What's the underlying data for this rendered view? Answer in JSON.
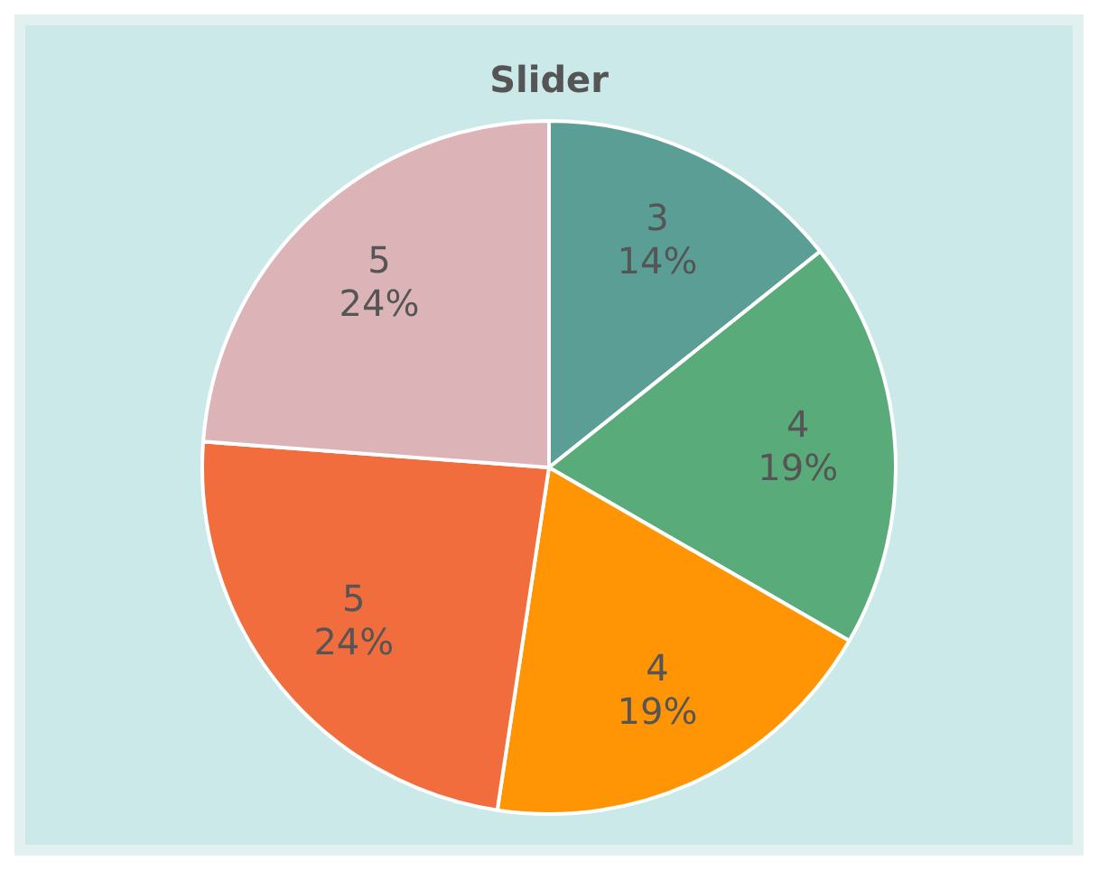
{
  "chart_data": {
    "type": "pie",
    "title": "Slider",
    "categories": [
      null,
      null,
      null,
      null,
      null
    ],
    "values": [
      3,
      4,
      4,
      5,
      5
    ],
    "colors": [
      "#5a9e96",
      "#5aab7a",
      "#ff9505",
      "#f26d3d",
      "#dcb4b8"
    ],
    "value_labels": [
      "3\n14%",
      "4\n19%",
      "4\n19%",
      "5\n24%",
      "5\n24%"
    ]
  }
}
